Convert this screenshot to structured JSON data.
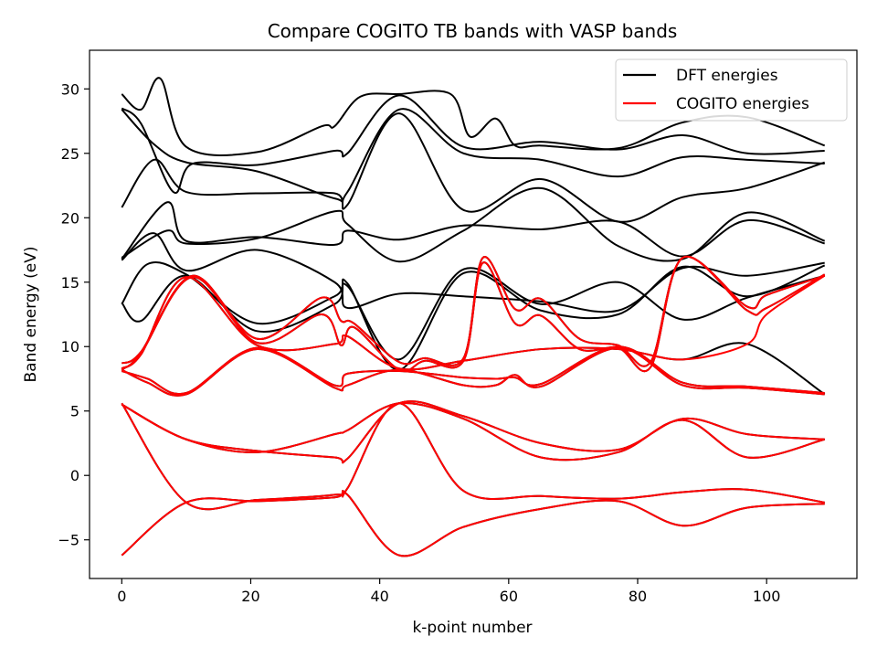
{
  "chart_data": {
    "type": "line",
    "title": "Compare COGITO TB bands with VASP bands",
    "xlabel": "k-point number",
    "ylabel": "Band energy (eV)",
    "xlim": [
      -5,
      114
    ],
    "ylim": [
      -8,
      33
    ],
    "xticks": [
      0,
      20,
      40,
      60,
      80,
      100
    ],
    "yticks": [
      -5,
      0,
      5,
      10,
      15,
      20,
      25,
      30
    ],
    "grid": false,
    "legend_position": "top-right",
    "legend": [
      {
        "label": "DFT energies",
        "color": "#000000"
      },
      {
        "label": "COGITO energies",
        "color": "#ff0000"
      }
    ],
    "series": [
      {
        "group": "DFT energies",
        "color": "#000000",
        "x": [
          0,
          10,
          21,
          33,
          35,
          43,
          53,
          65,
          77,
          87,
          97,
          109
        ],
        "y": [
          -6.2,
          -2.1,
          -2.0,
          -1.7,
          -1.5,
          -6.2,
          -4.0,
          -2.6,
          -2.0,
          -3.9,
          -2.5,
          -2.2
        ]
      },
      {
        "group": "DFT energies",
        "color": "#000000",
        "x": [
          0,
          10,
          21,
          33,
          35,
          43,
          53,
          65,
          77,
          87,
          97,
          109
        ],
        "y": [
          5.6,
          -2.1,
          -1.9,
          -1.5,
          -1.0,
          5.6,
          -1.2,
          -1.6,
          -1.8,
          -1.3,
          -1.1,
          -2.1
        ]
      },
      {
        "group": "DFT energies",
        "color": "#000000",
        "x": [
          0,
          10,
          21,
          33,
          35,
          43,
          53,
          65,
          77,
          87,
          97,
          109
        ],
        "y": [
          5.5,
          2.8,
          1.9,
          1.4,
          1.3,
          5.6,
          4.6,
          2.5,
          2.0,
          4.4,
          3.2,
          2.8
        ]
      },
      {
        "group": "DFT energies",
        "color": "#000000",
        "x": [
          0,
          10,
          21,
          33,
          35,
          43,
          53,
          65,
          77,
          87,
          97,
          109
        ],
        "y": [
          5.5,
          2.8,
          1.8,
          3.2,
          3.5,
          5.6,
          4.4,
          1.4,
          1.8,
          4.3,
          1.4,
          2.8
        ]
      },
      {
        "group": "DFT energies",
        "color": "#000000",
        "x": [
          0,
          4,
          10,
          21,
          33,
          35,
          43,
          53,
          58,
          61,
          65,
          77,
          87,
          97,
          109
        ],
        "y": [
          8.2,
          7.2,
          6.3,
          9.8,
          6.8,
          7.0,
          8.2,
          7.0,
          7.0,
          7.8,
          6.9,
          9.9,
          7.0,
          6.8,
          6.3
        ]
      },
      {
        "group": "DFT energies",
        "color": "#000000",
        "x": [
          0,
          4,
          10,
          21,
          33,
          35,
          43,
          53,
          58,
          61,
          65,
          77,
          87,
          97,
          109
        ],
        "y": [
          8.1,
          7.5,
          6.4,
          9.9,
          7.0,
          7.9,
          8.1,
          7.6,
          7.5,
          7.6,
          7.1,
          10.0,
          7.2,
          6.9,
          6.4
        ]
      },
      {
        "group": "DFT energies",
        "color": "#000000",
        "x": [
          0,
          3,
          11,
          21,
          31,
          34,
          36,
          43,
          47,
          53,
          56,
          61,
          65,
          71,
          77,
          82,
          87,
          97,
          100,
          109
        ],
        "y": [
          8.7,
          9.6,
          15.5,
          10.6,
          13.8,
          12.0,
          11.8,
          8.8,
          9.1,
          9.1,
          16.9,
          12.9,
          13.7,
          10.6,
          10.1,
          8.8,
          16.9,
          13.1,
          14.0,
          15.5
        ]
      },
      {
        "group": "DFT energies",
        "color": "#000000",
        "x": [
          0,
          3,
          11,
          21,
          31,
          34,
          36,
          43,
          47,
          53,
          56,
          61,
          65,
          71,
          77,
          82,
          87,
          97,
          100,
          109
        ],
        "y": [
          8.2,
          9.5,
          15.4,
          10.3,
          12.5,
          10.1,
          11.5,
          8.2,
          8.9,
          8.9,
          16.5,
          11.8,
          12.4,
          9.8,
          9.9,
          8.4,
          16.9,
          12.8,
          13.0,
          15.6
        ]
      },
      {
        "group": "DFT energies",
        "color": "#000000",
        "x": [
          0,
          3,
          10,
          21,
          33,
          35,
          43,
          53,
          65,
          77,
          87,
          97,
          109
        ],
        "y": [
          8.3,
          9.4,
          15.4,
          10.1,
          10.2,
          10.8,
          8.3,
          8.9,
          9.8,
          9.8,
          9.0,
          10.2,
          6.3
        ]
      },
      {
        "group": "DFT energies",
        "color": "#000000",
        "x": [
          0,
          3,
          10,
          21,
          33,
          35,
          43,
          53,
          65,
          77,
          87,
          97,
          109
        ],
        "y": [
          13.4,
          12.0,
          15.5,
          11.2,
          13.3,
          14.7,
          9.0,
          16.0,
          13.3,
          15.0,
          12.1,
          13.8,
          15.5
        ]
      },
      {
        "group": "DFT energies",
        "color": "#000000",
        "x": [
          0,
          4,
          10,
          21,
          33,
          35,
          43,
          53,
          65,
          77,
          87,
          97,
          109
        ],
        "y": [
          13.3,
          16.4,
          15.6,
          11.8,
          13.9,
          14.9,
          8.2,
          15.7,
          12.8,
          12.5,
          16.2,
          13.9,
          16.3
        ]
      },
      {
        "group": "DFT energies",
        "color": "#000000",
        "x": [
          0,
          5,
          10,
          21,
          33,
          35,
          43,
          53,
          65,
          77,
          87,
          97,
          109
        ],
        "y": [
          16.7,
          18.8,
          15.9,
          17.5,
          15.0,
          13.0,
          14.1,
          13.9,
          13.5,
          12.8,
          16.1,
          15.5,
          16.5
        ]
      },
      {
        "group": "DFT energies",
        "color": "#000000",
        "x": [
          0,
          7,
          10,
          21,
          33,
          35,
          43,
          53,
          65,
          77,
          87,
          97,
          109
        ],
        "y": [
          16.8,
          21.2,
          18.2,
          18.5,
          17.9,
          19.0,
          18.3,
          19.4,
          19.1,
          19.7,
          17.0,
          19.8,
          18.0
        ]
      },
      {
        "group": "DFT energies",
        "color": "#000000",
        "x": [
          0,
          7,
          10,
          21,
          33,
          35,
          43,
          53,
          65,
          77,
          87,
          97,
          109
        ],
        "y": [
          16.9,
          19.0,
          18.0,
          18.4,
          20.5,
          19.5,
          16.6,
          19.0,
          22.3,
          17.8,
          16.8,
          20.4,
          18.2
        ]
      },
      {
        "group": "DFT energies",
        "color": "#000000",
        "x": [
          0,
          5,
          10,
          21,
          33,
          35,
          43,
          53,
          65,
          77,
          87,
          97,
          109
        ],
        "y": [
          20.8,
          24.5,
          22.0,
          21.9,
          21.9,
          21.0,
          28.1,
          20.6,
          23.0,
          19.7,
          21.6,
          22.3,
          24.3
        ]
      },
      {
        "group": "DFT energies",
        "color": "#000000",
        "x": [
          0,
          5,
          10,
          21,
          33,
          35,
          43,
          53,
          65,
          77,
          87,
          97,
          109
        ],
        "y": [
          28.4,
          25.7,
          24.3,
          23.6,
          21.5,
          22.0,
          28.4,
          25.0,
          24.5,
          23.2,
          24.7,
          24.5,
          24.2
        ]
      },
      {
        "group": "DFT energies",
        "color": "#000000",
        "x": [
          0,
          3,
          8,
          11,
          21,
          33,
          35,
          43,
          53,
          65,
          77,
          87,
          97,
          109
        ],
        "y": [
          28.5,
          27.3,
          22.0,
          24.2,
          24.1,
          25.2,
          25.0,
          29.5,
          25.5,
          25.9,
          25.3,
          26.4,
          25.0,
          25.2
        ]
      },
      {
        "group": "DFT energies",
        "color": "#000000",
        "x": [
          0,
          3,
          6,
          10,
          21,
          31,
          33,
          37,
          43,
          51,
          54,
          58,
          61,
          65,
          77,
          87,
          97,
          109
        ],
        "y": [
          29.6,
          28.4,
          30.8,
          25.5,
          25.1,
          27.1,
          27.1,
          29.4,
          29.6,
          29.6,
          26.3,
          27.7,
          25.6,
          25.6,
          25.4,
          27.4,
          27.8,
          25.6
        ]
      },
      {
        "group": "COGITO energies",
        "color": "#ff0000",
        "x": [
          0,
          10,
          21,
          33,
          35,
          43,
          53,
          65,
          77,
          87,
          97,
          109
        ],
        "y": [
          -6.2,
          -2.1,
          -2.0,
          -1.7,
          -1.5,
          -6.2,
          -4.0,
          -2.6,
          -2.0,
          -3.9,
          -2.5,
          -2.2
        ]
      },
      {
        "group": "COGITO energies",
        "color": "#ff0000",
        "x": [
          0,
          10,
          21,
          33,
          35,
          43,
          53,
          65,
          77,
          87,
          97,
          109
        ],
        "y": [
          5.6,
          -2.1,
          -1.9,
          -1.5,
          -1.0,
          5.6,
          -1.2,
          -1.6,
          -1.8,
          -1.3,
          -1.1,
          -2.1
        ]
      },
      {
        "group": "COGITO energies",
        "color": "#ff0000",
        "x": [
          0,
          10,
          21,
          33,
          35,
          43,
          53,
          65,
          77,
          87,
          97,
          109
        ],
        "y": [
          5.5,
          2.8,
          1.9,
          1.4,
          1.3,
          5.6,
          4.6,
          2.5,
          2.0,
          4.4,
          3.2,
          2.8
        ]
      },
      {
        "group": "COGITO energies",
        "color": "#ff0000",
        "x": [
          0,
          10,
          21,
          33,
          35,
          43,
          53,
          65,
          77,
          87,
          97,
          109
        ],
        "y": [
          5.5,
          2.8,
          1.8,
          3.2,
          3.5,
          5.6,
          4.4,
          1.4,
          1.8,
          4.3,
          1.4,
          2.8
        ]
      },
      {
        "group": "COGITO energies",
        "color": "#ff0000",
        "x": [
          0,
          4,
          10,
          21,
          33,
          35,
          43,
          53,
          58,
          61,
          65,
          77,
          87,
          97,
          109
        ],
        "y": [
          8.2,
          7.2,
          6.3,
          9.8,
          6.8,
          7.0,
          8.2,
          7.0,
          7.0,
          7.8,
          6.9,
          9.9,
          7.0,
          6.8,
          6.3
        ]
      },
      {
        "group": "COGITO energies",
        "color": "#ff0000",
        "x": [
          0,
          4,
          10,
          21,
          33,
          35,
          43,
          53,
          58,
          61,
          65,
          77,
          87,
          97,
          109
        ],
        "y": [
          8.1,
          7.5,
          6.4,
          9.9,
          7.0,
          7.9,
          8.1,
          7.6,
          7.5,
          7.6,
          7.1,
          10.0,
          7.2,
          6.9,
          6.4
        ]
      },
      {
        "group": "COGITO energies",
        "color": "#ff0000",
        "x": [
          0,
          3,
          11,
          21,
          31,
          34,
          36,
          43,
          47,
          53,
          56,
          61,
          65,
          71,
          77,
          82,
          87,
          97,
          100,
          109
        ],
        "y": [
          8.7,
          9.6,
          15.5,
          10.6,
          13.8,
          12.0,
          11.8,
          8.8,
          9.1,
          9.1,
          16.9,
          12.9,
          13.7,
          10.6,
          10.1,
          8.8,
          16.9,
          13.1,
          14.0,
          15.5
        ]
      },
      {
        "group": "COGITO energies",
        "color": "#ff0000",
        "x": [
          0,
          3,
          11,
          21,
          31,
          34,
          36,
          43,
          47,
          53,
          56,
          61,
          65,
          71,
          77,
          82,
          87,
          97,
          100,
          109
        ],
        "y": [
          8.2,
          9.5,
          15.4,
          10.3,
          12.5,
          10.1,
          11.5,
          8.2,
          8.9,
          8.9,
          16.5,
          11.8,
          12.4,
          9.8,
          9.9,
          8.4,
          16.9,
          12.8,
          13.0,
          15.6
        ]
      },
      {
        "group": "COGITO energies",
        "color": "#ff0000",
        "x": [
          0,
          3,
          10,
          21,
          33,
          35,
          43,
          53,
          65,
          77,
          87,
          97,
          100,
          109
        ],
        "y": [
          8.3,
          9.4,
          15.4,
          10.1,
          10.2,
          10.8,
          8.3,
          8.9,
          9.8,
          9.8,
          9.0,
          10.2,
          12.5,
          15.5
        ]
      }
    ]
  }
}
